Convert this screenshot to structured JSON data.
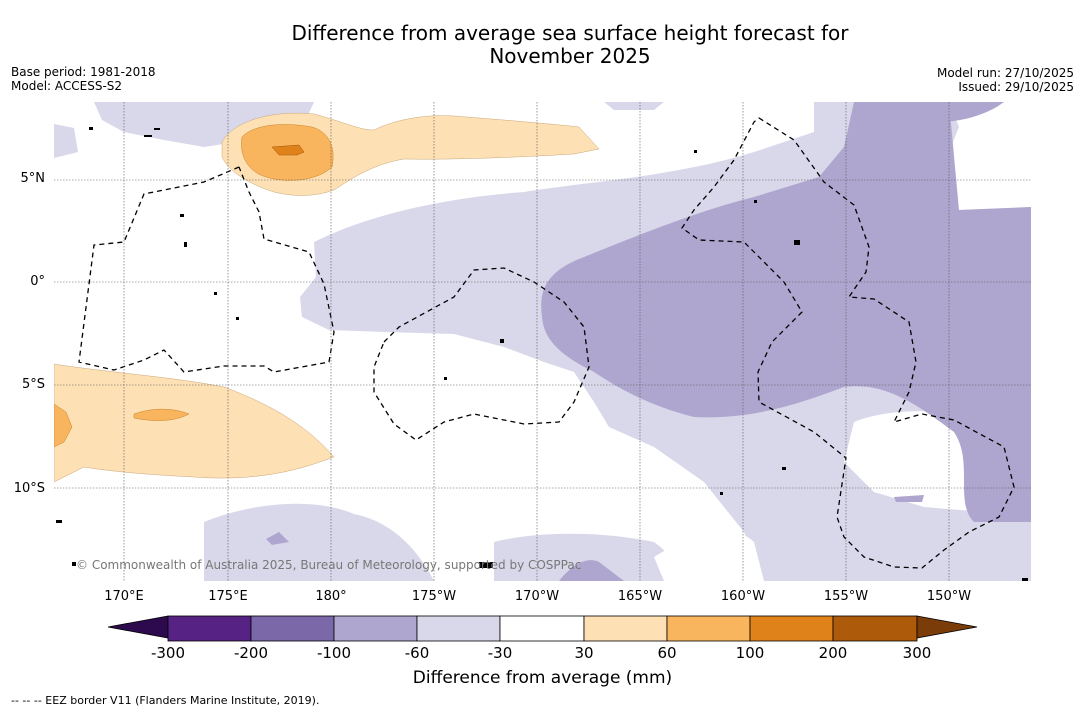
{
  "title_line1": "Difference from average sea surface height forecast for",
  "title_line2": "November 2025",
  "base_period": "Base period: 1981-2018",
  "model": "Model: ACCESS-S2",
  "model_run": "Model run: 27/10/2025",
  "issued": "Issued: 29/10/2025",
  "lat_labels": [
    "5°N",
    "0°",
    "5°S",
    "10°S"
  ],
  "lon_labels": [
    "170°E",
    "175°E",
    "180°",
    "175°W",
    "170°W",
    "165°W",
    "160°W",
    "155°W",
    "150°W"
  ],
  "copyright": "© Commonwealth of Australia 2025, Bureau of Meteorology, supported by COSPPac",
  "colorbar": {
    "ticks": [
      "-300",
      "-200",
      "-100",
      "-60",
      "-30",
      "30",
      "60",
      "100",
      "200",
      "300"
    ],
    "colors": [
      "#562384",
      "#7b68a9",
      "#aea6ce",
      "#d8d8ea",
      "#ffffff",
      "#fde0b4",
      "#f9b45e",
      "#e0821a",
      "#ad5a0b"
    ],
    "under_color": "#2d0a4e",
    "over_color": "#7a3c09",
    "label": "Difference from average (mm)"
  },
  "footnote": "-- -- -- EEZ border V11 (Flanders Marine Institute, 2019)."
}
